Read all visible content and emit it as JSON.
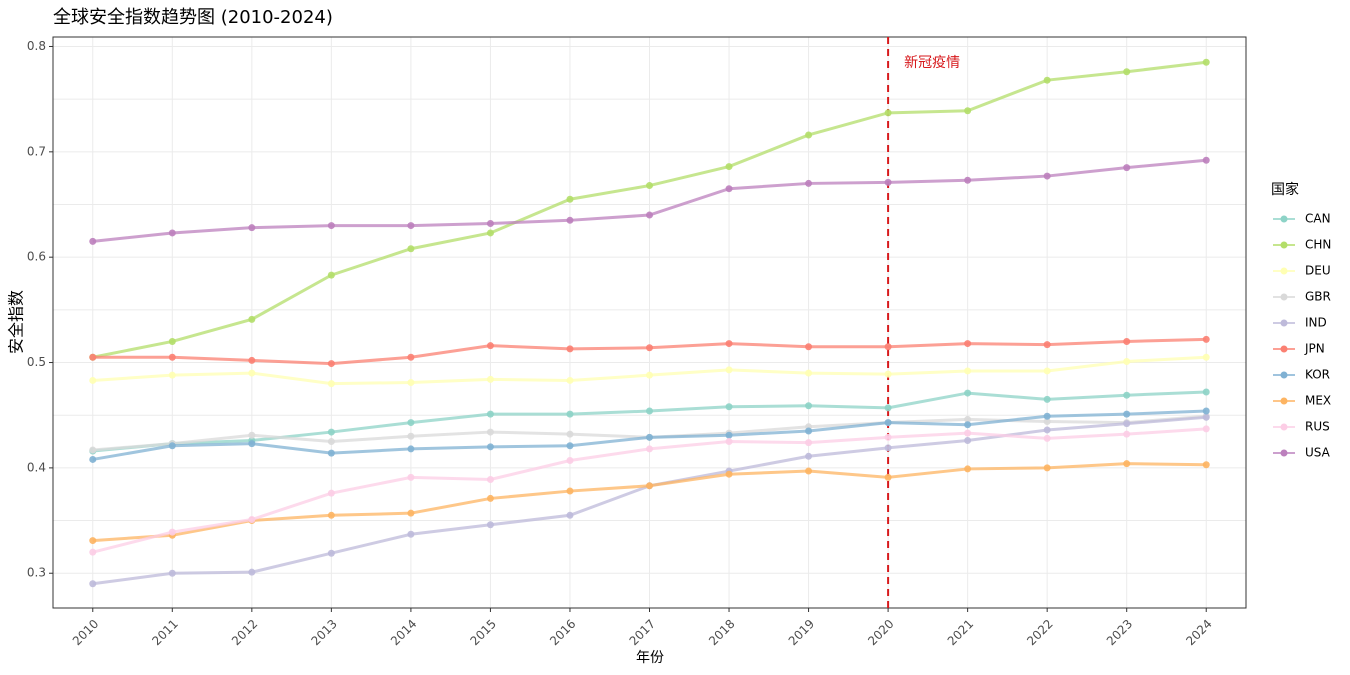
{
  "chart_data": {
    "type": "line",
    "title": "全球安全指数趋势图 (2010-2024)",
    "xlabel": "年份",
    "ylabel": "安全指数",
    "legend_title": "国家",
    "legend_position": "right",
    "grid": true,
    "x": [
      2010,
      2011,
      2012,
      2013,
      2014,
      2015,
      2016,
      2017,
      2018,
      2019,
      2020,
      2021,
      2022,
      2023,
      2024
    ],
    "xlim": [
      2009.5,
      2024.5
    ],
    "xticks": [
      2010,
      2011,
      2012,
      2013,
      2014,
      2015,
      2016,
      2017,
      2018,
      2019,
      2020,
      2021,
      2022,
      2023,
      2024
    ],
    "ylim": [
      0.267,
      0.809
    ],
    "yticks": [
      0.3,
      0.4,
      0.5,
      0.6,
      0.7,
      0.8
    ],
    "annotations": [
      {
        "x": 2020,
        "text": "新冠疫情",
        "color": "#d7191c"
      }
    ],
    "series": [
      {
        "name": "CAN",
        "color": "#8dd3c7",
        "values": [
          0.416,
          0.423,
          0.426,
          0.434,
          0.443,
          0.451,
          0.451,
          0.454,
          0.458,
          0.459,
          0.457,
          0.471,
          0.465,
          0.469,
          0.472
        ]
      },
      {
        "name": "CHN",
        "color": "#b3de69",
        "values": [
          0.505,
          0.52,
          0.541,
          0.583,
          0.608,
          0.623,
          0.655,
          0.668,
          0.686,
          0.716,
          0.737,
          0.739,
          0.768,
          0.776,
          0.785
        ]
      },
      {
        "name": "DEU",
        "color": "#ffffb3",
        "values": [
          0.483,
          0.488,
          0.49,
          0.48,
          0.481,
          0.484,
          0.483,
          0.488,
          0.493,
          0.49,
          0.489,
          0.492,
          0.492,
          0.501,
          0.505
        ]
      },
      {
        "name": "GBR",
        "color": "#d9d9d9",
        "values": [
          0.417,
          0.423,
          0.431,
          0.425,
          0.43,
          0.434,
          0.432,
          0.429,
          0.433,
          0.439,
          0.443,
          0.446,
          0.444,
          0.443,
          0.449
        ]
      },
      {
        "name": "IND",
        "color": "#bebada",
        "values": [
          0.29,
          0.3,
          0.301,
          0.319,
          0.337,
          0.346,
          0.355,
          0.383,
          0.397,
          0.411,
          0.419,
          0.426,
          0.436,
          0.442,
          0.448
        ]
      },
      {
        "name": "JPN",
        "color": "#fb8072",
        "values": [
          0.505,
          0.505,
          0.502,
          0.499,
          0.505,
          0.516,
          0.513,
          0.514,
          0.518,
          0.515,
          0.515,
          0.518,
          0.517,
          0.52,
          0.522
        ]
      },
      {
        "name": "KOR",
        "color": "#80b1d3",
        "values": [
          0.408,
          0.421,
          0.423,
          0.414,
          0.418,
          0.42,
          0.421,
          0.429,
          0.431,
          0.435,
          0.443,
          0.441,
          0.449,
          0.451,
          0.454
        ]
      },
      {
        "name": "MEX",
        "color": "#fdb462",
        "values": [
          0.331,
          0.336,
          0.35,
          0.355,
          0.357,
          0.371,
          0.378,
          0.383,
          0.394,
          0.397,
          0.391,
          0.399,
          0.4,
          0.404,
          0.403
        ]
      },
      {
        "name": "RUS",
        "color": "#fccde5",
        "values": [
          0.32,
          0.339,
          0.351,
          0.376,
          0.391,
          0.389,
          0.407,
          0.418,
          0.425,
          0.424,
          0.429,
          0.433,
          0.428,
          0.432,
          0.437
        ]
      },
      {
        "name": "USA",
        "color": "#bc80bd",
        "values": [
          0.615,
          0.623,
          0.628,
          0.63,
          0.63,
          0.632,
          0.635,
          0.64,
          0.665,
          0.67,
          0.671,
          0.673,
          0.677,
          0.685,
          0.692
        ]
      }
    ]
  }
}
